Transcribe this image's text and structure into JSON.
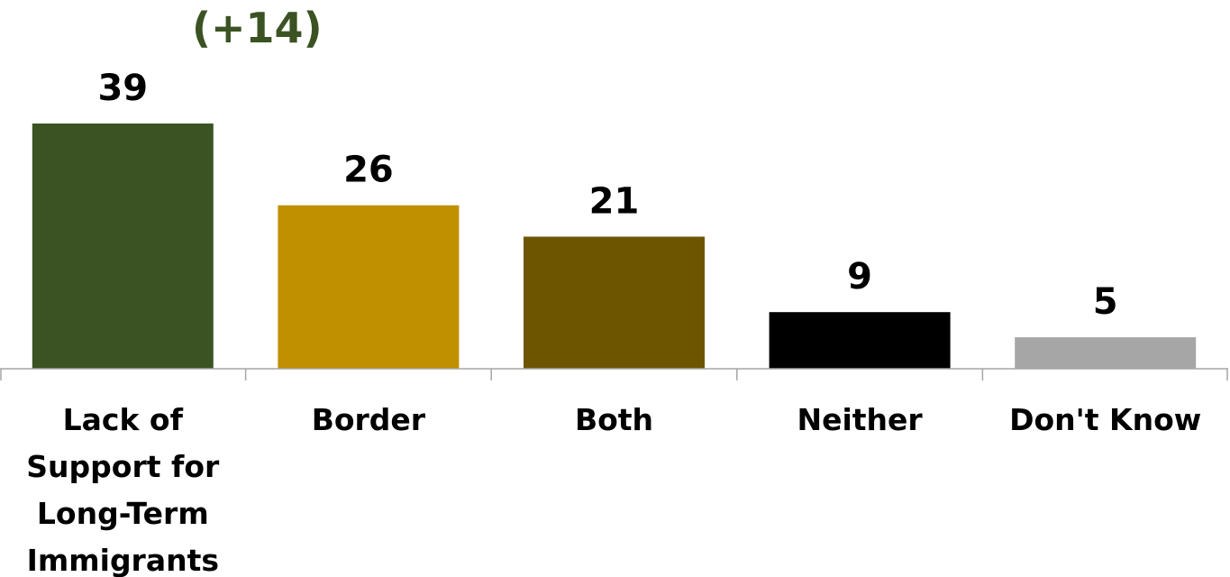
{
  "chart_data": {
    "type": "bar",
    "title": "",
    "xlabel": "",
    "ylabel": "",
    "ylim": [
      0,
      39
    ],
    "grid": false,
    "categories": [
      [
        "Lack of",
        "Support for",
        "Long-Term",
        "Immigrants"
      ],
      [
        "Border"
      ],
      [
        "Both"
      ],
      [
        "Neither"
      ],
      [
        "Don't Know"
      ]
    ],
    "values": [
      39,
      26,
      21,
      9,
      5
    ],
    "value_labels": [
      "39",
      "26",
      "21",
      "9",
      "5"
    ],
    "colors": [
      "#3b5323",
      "#c09000",
      "#6d5500",
      "#000000",
      "#a6a6a6"
    ],
    "annotations": [
      {
        "text": "(+14)",
        "category_index": 0,
        "color": "#3b5323"
      }
    ]
  }
}
